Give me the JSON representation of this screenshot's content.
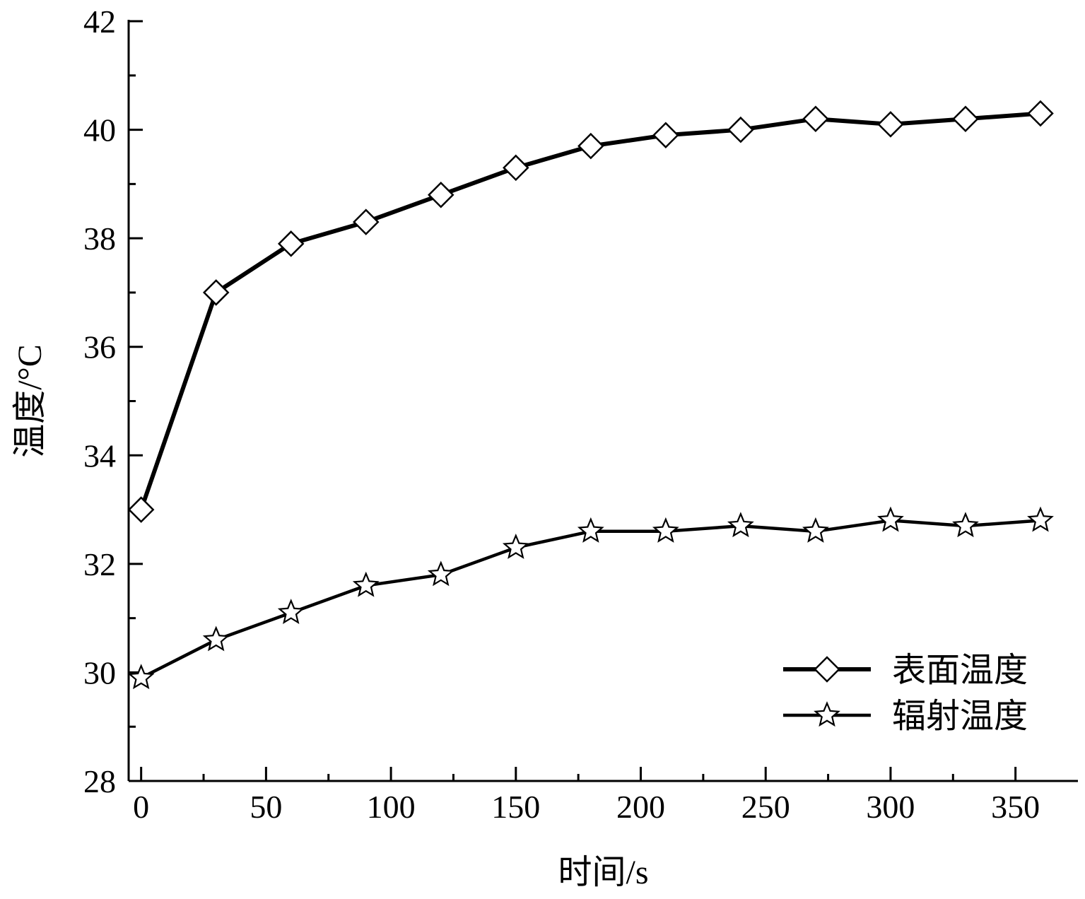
{
  "chart_data": {
    "type": "line",
    "title": "",
    "xlabel": "时间/s",
    "ylabel": "温度/°C",
    "xlim": [
      -5,
      375
    ],
    "ylim": [
      28,
      42
    ],
    "xticks": [
      0,
      50,
      100,
      150,
      200,
      250,
      300,
      350
    ],
    "xticks_minor": [
      25,
      75,
      125,
      175,
      225,
      275,
      325
    ],
    "yticks": [
      28,
      30,
      32,
      34,
      36,
      38,
      40,
      42
    ],
    "yticks_minor": [
      29,
      31,
      33,
      35,
      37,
      39,
      41
    ],
    "grid": false,
    "legend_position": "bottom-right",
    "x": [
      0,
      30,
      60,
      90,
      120,
      150,
      180,
      210,
      240,
      270,
      300,
      330,
      360
    ],
    "series": [
      {
        "name": "表面温度",
        "marker": "diamond",
        "values": [
          33.0,
          37.0,
          37.9,
          38.3,
          38.8,
          39.3,
          39.7,
          39.9,
          40.0,
          40.2,
          40.1,
          40.2,
          40.3
        ]
      },
      {
        "name": "辐射温度",
        "marker": "star",
        "values": [
          29.9,
          30.6,
          31.1,
          31.6,
          31.8,
          32.3,
          32.6,
          32.6,
          32.7,
          32.6,
          32.8,
          32.7,
          32.8
        ]
      }
    ]
  }
}
